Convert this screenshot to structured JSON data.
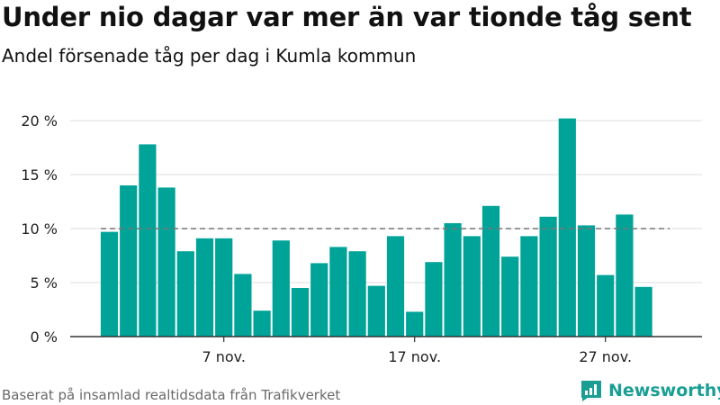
{
  "title": "Under nio dagar var mer än var tionde tåg sent",
  "subtitle": "Andel försenade tåg per dag i Kumla kommun",
  "source": "Baserat på insamlad realtidsdata från Trafikverket",
  "brand": {
    "name": "Newsworthy",
    "logo_icon": "newsworthy-logo-icon",
    "color": "#1a9e94"
  },
  "chart_data": {
    "type": "bar",
    "title": "Under nio dagar var mer än var tionde tåg sent",
    "subtitle": "Andel försenade tåg per dag i Kumla kommun",
    "xlabel": "",
    "ylabel": "",
    "x_ticks": [
      "7 nov.",
      "17 nov.",
      "27 nov."
    ],
    "x_tick_days": [
      7,
      17,
      27
    ],
    "first_day": 1,
    "y_ticks": [
      0,
      5,
      10,
      15,
      20
    ],
    "y_tick_labels": [
      "0 %",
      "5 %",
      "10 %",
      "15 %",
      "20 %"
    ],
    "ylim": [
      0,
      21
    ],
    "grid": true,
    "reference_line": {
      "value": 10,
      "style": "dashed"
    },
    "bar_color": "#00a398",
    "values": [
      9.7,
      14.0,
      17.8,
      13.8,
      7.9,
      9.1,
      9.1,
      5.8,
      2.4,
      8.9,
      4.5,
      6.8,
      8.3,
      7.9,
      4.7,
      9.3,
      2.3,
      6.9,
      10.5,
      9.3,
      12.1,
      7.4,
      9.3,
      11.1,
      20.2,
      10.3,
      5.7,
      11.3,
      4.6
    ]
  }
}
